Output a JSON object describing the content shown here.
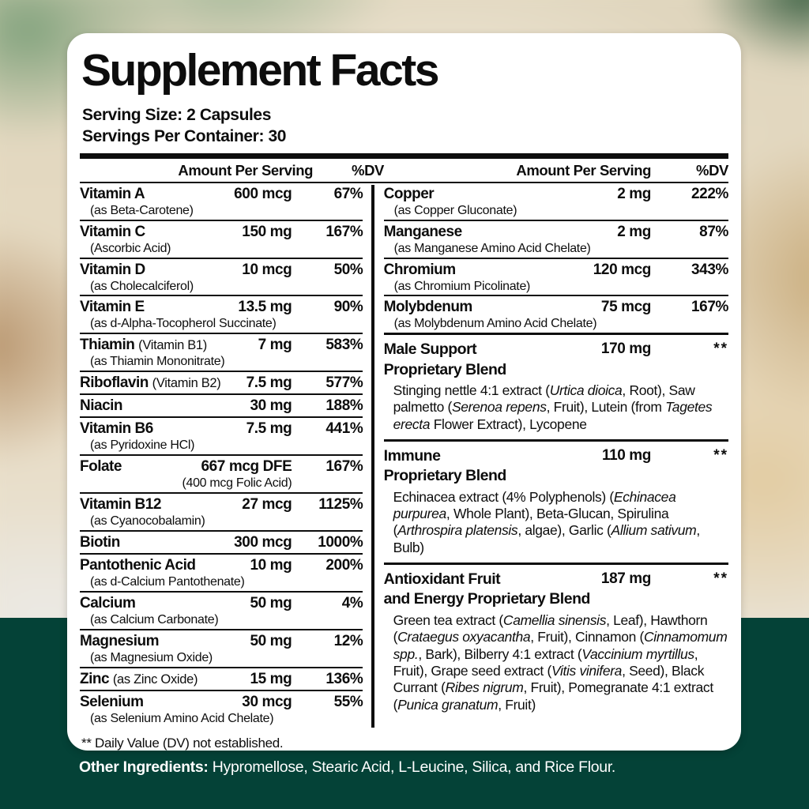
{
  "panel": {
    "title": "Supplement Facts",
    "serving_size": "Serving Size: 2 Capsules",
    "servings_per_container": "Servings Per Container: 30",
    "column_header": {
      "amount": "Amount Per Serving",
      "dv": "%DV"
    },
    "footnote": "** Daily Value (DV) not established."
  },
  "nutrients_left": [
    {
      "name": "Vitamin A",
      "sub": "(as Beta-Carotene)",
      "amount": "600 mcg",
      "dv": "67%"
    },
    {
      "name": "Vitamin C",
      "sub": "(Ascorbic Acid)",
      "amount": "150 mg",
      "dv": "167%"
    },
    {
      "name": "Vitamin D",
      "sub": "(as Cholecalciferol)",
      "amount": "10 mcg",
      "dv": "50%"
    },
    {
      "name": "Vitamin E",
      "sub": "(as d-Alpha-Tocopherol Succinate)",
      "amount": "13.5 mg",
      "dv": "90%"
    },
    {
      "name": "Thiamin",
      "note": "(Vitamin B1)",
      "sub": "(as Thiamin Mononitrate)",
      "amount": "7 mg",
      "dv": "583%"
    },
    {
      "name": "Riboflavin",
      "note": "(Vitamin B2)",
      "amount": "7.5 mg",
      "dv": "577%"
    },
    {
      "name": "Niacin",
      "amount": "30 mg",
      "dv": "188%"
    },
    {
      "name": "Vitamin B6",
      "sub": "(as Pyridoxine HCl)",
      "amount": "7.5 mg",
      "dv": "441%"
    },
    {
      "name": "Folate",
      "amount_sub": "(400 mcg Folic Acid)",
      "amount": "667 mcg DFE",
      "dv": "167%"
    },
    {
      "name": "Vitamin B12",
      "sub": "(as Cyanocobalamin)",
      "amount": "27 mcg",
      "dv": "1125%"
    },
    {
      "name": "Biotin",
      "amount": "300 mcg",
      "dv": "1000%"
    },
    {
      "name": "Pantothenic Acid",
      "sub": "(as d-Calcium Pantothenate)",
      "amount": "10 mg",
      "dv": "200%"
    },
    {
      "name": "Calcium",
      "sub": "(as Calcium Carbonate)",
      "amount": "50 mg",
      "dv": "4%"
    },
    {
      "name": "Magnesium",
      "sub": "(as Magnesium Oxide)",
      "amount": "50 mg",
      "dv": "12%"
    },
    {
      "name": "Zinc",
      "note": "(as Zinc Oxide)",
      "amount": "15 mg",
      "dv": "136%"
    },
    {
      "name": "Selenium",
      "sub": "(as Selenium Amino Acid Chelate)",
      "amount": "30 mcg",
      "dv": "55%"
    }
  ],
  "nutrients_right": [
    {
      "name": "Copper",
      "sub": "(as Copper Gluconate)",
      "amount": "2 mg",
      "dv": "222%"
    },
    {
      "name": "Manganese",
      "sub": "(as Manganese Amino Acid Chelate)",
      "amount": "2 mg",
      "dv": "87%"
    },
    {
      "name": "Chromium",
      "sub": "(as Chromium Picolinate)",
      "amount": "120 mcg",
      "dv": "343%"
    },
    {
      "name": "Molybdenum",
      "sub": "(as Molybdenum Amino Acid Chelate)",
      "amount": "75 mcg",
      "dv": "167%"
    }
  ],
  "blends": [
    {
      "title_line1": "Male Support",
      "title_line2": "Proprietary Blend",
      "amount": "170 mg",
      "dv": "**",
      "description": [
        {
          "t": "Stinging nettle 4:1 extract ("
        },
        {
          "t": "Urtica dioica",
          "i": true
        },
        {
          "t": ", Root), Saw palmetto ("
        },
        {
          "t": "Serenoa repens",
          "i": true
        },
        {
          "t": ", Fruit), Lutein (from "
        },
        {
          "t": "Tagetes erecta",
          "i": true
        },
        {
          "t": " Flower Extract), Lycopene"
        }
      ]
    },
    {
      "title_line1": "Immune",
      "title_line2": "Proprietary Blend",
      "amount": "110 mg",
      "dv": "**",
      "description": [
        {
          "t": "Echinacea extract (4% Polyphenols) ("
        },
        {
          "t": "Echinacea purpurea",
          "i": true
        },
        {
          "t": ", Whole Plant), Beta-Glucan, Spirulina ("
        },
        {
          "t": "Arthrospira platensis",
          "i": true
        },
        {
          "t": ", algae), Garlic ("
        },
        {
          "t": "Allium sativum",
          "i": true
        },
        {
          "t": ", Bulb)"
        }
      ]
    },
    {
      "title_line1": "Antioxidant Fruit",
      "title_line2": "and Energy Proprietary Blend",
      "amount": "187 mg",
      "dv": "**",
      "description": [
        {
          "t": "Green tea extract ("
        },
        {
          "t": "Camellia sinensis",
          "i": true
        },
        {
          "t": ", Leaf), Hawthorn ("
        },
        {
          "t": "Crataegus oxyacantha",
          "i": true
        },
        {
          "t": ", Fruit), Cinnamon ("
        },
        {
          "t": "Cinnamomum spp.",
          "i": true
        },
        {
          "t": ", Bark), Bilberry 4:1 extract ("
        },
        {
          "t": "Vaccinium myrtillus",
          "i": true
        },
        {
          "t": ", Fruit), Grape seed extract ("
        },
        {
          "t": "Vitis vinifera",
          "i": true
        },
        {
          "t": ", Seed), Black Currant ("
        },
        {
          "t": "Ribes nigrum",
          "i": true
        },
        {
          "t": ", Fruit), Pomegranate 4:1 extract ("
        },
        {
          "t": "Punica granatum",
          "i": true
        },
        {
          "t": ", Fruit)"
        }
      ]
    }
  ],
  "other_ingredients": {
    "label": "Other Ingredients:",
    "text": " Hypromellose, Stearic Acid, L-Leucine, Silica, and Rice Flour."
  },
  "colors": {
    "band_green": "#044237",
    "card": "#ffffff",
    "text": "#0d0d0d"
  }
}
